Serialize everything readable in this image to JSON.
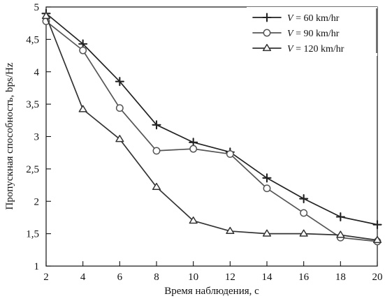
{
  "chart_data": {
    "type": "line",
    "title": "",
    "xlabel": "Время наблюдения, с",
    "ylabel": "Пропускная способность, bps/Hz",
    "x": [
      2,
      4,
      6,
      8,
      10,
      12,
      14,
      16,
      18,
      20
    ],
    "xlim": [
      2,
      20
    ],
    "ylim": [
      1,
      5
    ],
    "x_ticks": [
      2,
      4,
      6,
      8,
      10,
      12,
      14,
      16,
      18,
      20
    ],
    "y_ticks": [
      1,
      1.5,
      2,
      2.5,
      3,
      3.5,
      4,
      4.5,
      5
    ],
    "x_tick_labels": [
      "2",
      "4",
      "6",
      "8",
      "10",
      "12",
      "14",
      "16",
      "18",
      "20"
    ],
    "y_tick_labels": [
      "1",
      "1,5",
      "2",
      "2,5",
      "3",
      "3,5",
      "4",
      "4,5",
      "5"
    ],
    "grid": false,
    "legend_position": "top-right",
    "series": [
      {
        "name": "V = 60 km/hr",
        "legend_prefix": "V",
        "legend_suffix": " = 60 km/hr",
        "marker": "plus",
        "color": "#222222",
        "values": [
          4.9,
          4.43,
          3.85,
          3.18,
          2.91,
          2.76,
          2.36,
          2.04,
          1.76,
          1.64
        ]
      },
      {
        "name": "V = 90 km/hr",
        "legend_prefix": "V",
        "legend_suffix": " = 90 km/hr",
        "marker": "circle",
        "color": "#555555",
        "values": [
          4.78,
          4.33,
          3.44,
          2.78,
          2.81,
          2.73,
          2.2,
          1.82,
          1.44,
          1.38
        ]
      },
      {
        "name": "V = 120 km/hr",
        "legend_prefix": "V",
        "legend_suffix": " = 120 km/hr",
        "marker": "triangle",
        "color": "#333333",
        "values": [
          4.86,
          3.42,
          2.96,
          2.22,
          1.7,
          1.54,
          1.5,
          1.5,
          1.48,
          1.4
        ]
      }
    ]
  }
}
